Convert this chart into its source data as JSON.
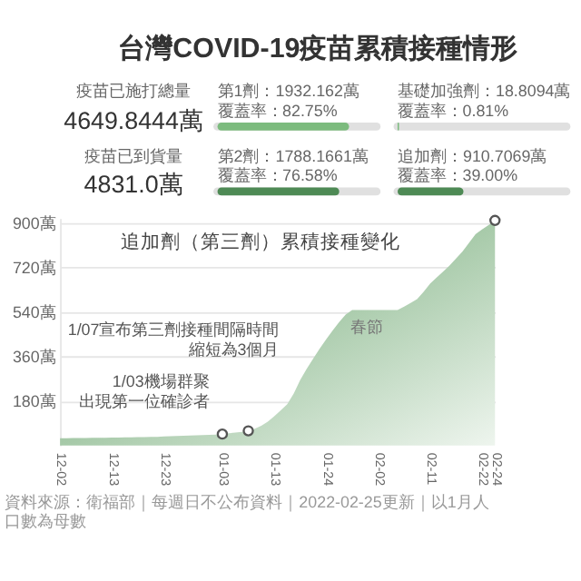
{
  "chart_data": [
    {
      "type": "other",
      "title": "台灣COVID-19疫苗累積接種情形",
      "categories": [
        null,
        null,
        null,
        null
      ],
      "values": [
        82.75,
        0.81,
        76.58,
        39.0
      ],
      "value_labels": [
        "82.75%",
        "0.81%",
        "76.58%",
        "39.00%"
      ],
      "colors": [
        "#7cbb7e",
        "#7cbb7e",
        "#4e8a55",
        "#4e8a55"
      ],
      "annotations": [
        "疫苗已施打總量",
        "4649.8444萬",
        "第1劑：1932.162萬",
        "覆蓋率：",
        "基礎加強劑：18.8094萬",
        "覆蓋率：",
        "疫苗已到貨量",
        "4831.0萬",
        "第2劑：1788.1661萬",
        "覆蓋率：",
        "追加劑：910.7069萬",
        "覆蓋率："
      ]
    },
    {
      "type": "area",
      "title": "追加劑（第三劑）累積接種變化",
      "categories": [
        "12-02",
        null,
        null,
        null,
        null,
        null,
        null,
        null,
        "12-13",
        null,
        null,
        null,
        null,
        null,
        null,
        null,
        "12-23",
        null,
        null,
        null,
        null,
        null,
        null,
        null,
        null,
        "01-03",
        null,
        null,
        null,
        null,
        null,
        null,
        null,
        "01-13",
        null,
        null,
        null,
        null,
        null,
        null,
        null,
        "01-24",
        null,
        null,
        null,
        null,
        null,
        null,
        null,
        "02-02",
        null,
        null,
        null,
        null,
        null,
        null,
        null,
        "02-11",
        null,
        null,
        null,
        null,
        null,
        null,
        null,
        "02-22",
        null,
        "02-24"
      ],
      "series": [
        {
          "color": "#5f9e63",
          "values": [
            29,
            29,
            30,
            30,
            30,
            31,
            31,
            31,
            32,
            32,
            33,
            33,
            34,
            34,
            35,
            35,
            36,
            37,
            38,
            39,
            40,
            41,
            42,
            43,
            44,
            46,
            49,
            52,
            55,
            59,
            68,
            80,
            96,
            118,
            142,
            167,
            210,
            265,
            310,
            352,
            392,
            430,
            466,
            500,
            530,
            548,
            548,
            548,
            548,
            548,
            548,
            548,
            548,
            562,
            577,
            592,
            622,
            655,
            680,
            704,
            728,
            757,
            785,
            820,
            855,
            875,
            892,
            911
          ]
        },
        {
          "type": "scatter",
          "color": "#555555",
          "marker": "circle",
          "values": [
            null,
            null,
            null,
            null,
            null,
            null,
            null,
            null,
            null,
            null,
            null,
            null,
            null,
            null,
            null,
            null,
            null,
            null,
            null,
            null,
            null,
            null,
            null,
            null,
            null,
            46,
            null,
            null,
            null,
            59,
            null,
            null,
            null,
            null,
            null,
            null,
            null,
            null,
            null,
            null,
            null,
            null,
            null,
            null,
            null,
            null,
            null,
            null,
            null,
            null,
            null,
            null,
            null,
            null,
            null,
            null,
            null,
            null,
            null,
            null,
            null,
            null,
            null,
            null,
            null,
            null,
            null,
            911
          ]
        }
      ],
      "ylim": [
        0,
        920
      ],
      "yticks": [
        {
          "value": 180,
          "label": "180萬"
        },
        {
          "value": 360,
          "label": "360萬"
        },
        {
          "value": 540,
          "label": "540萬"
        },
        {
          "value": 720,
          "label": "720萬"
        },
        {
          "value": 900,
          "label": "900萬"
        }
      ],
      "grid": "y",
      "annotations": [
        "春節",
        "1/07宣布第三劑接種間隔時間縮短為3個月",
        "1/03機場群聚出現第一位確診者",
        "資料來源：衛福部｜每週日不公布資料｜2022-02-25更新｜以1月人口數為母數"
      ]
    }
  ]
}
